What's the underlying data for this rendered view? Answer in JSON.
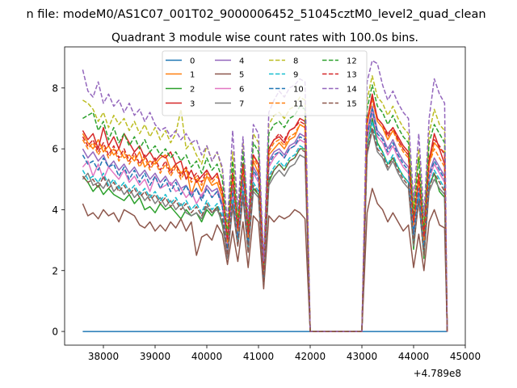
{
  "chart_data": {
    "type": "line",
    "suptitle": "n file: modeM0/AS1C07_001T02_9000006452_51045cztM0_level2_quad_clean",
    "title": "Quadrant 3 module wise count rates with 100.0s bins.",
    "xlabel": "",
    "ylabel": "",
    "x_offset_label": "+4.789e8",
    "xlim": [
      37250,
      45000
    ],
    "ylim": [
      -0.45,
      9.35
    ],
    "x_ticks": [
      38000,
      39000,
      40000,
      41000,
      42000,
      43000,
      44000,
      45000
    ],
    "y_ticks": [
      0,
      2,
      4,
      6,
      8
    ],
    "x_tick_labels": [
      "38000",
      "39000",
      "40000",
      "41000",
      "42000",
      "43000",
      "44000",
      "45000"
    ],
    "y_tick_labels": [
      "0",
      "2",
      "4",
      "6",
      "8"
    ],
    "grid": false,
    "legend_placement": "upper-center",
    "x": [
      37600,
      37700,
      37800,
      37900,
      38000,
      38100,
      38200,
      38300,
      38400,
      38500,
      38600,
      38700,
      38800,
      38900,
      39000,
      39100,
      39200,
      39300,
      39400,
      39500,
      39600,
      39700,
      39800,
      39900,
      40000,
      40100,
      40200,
      40300,
      40400,
      40500,
      40600,
      40700,
      40800,
      40900,
      41000,
      41100,
      41200,
      41300,
      41400,
      41500,
      41600,
      41700,
      41800,
      41900,
      42000,
      42100,
      43000,
      43100,
      43200,
      43300,
      43400,
      43500,
      43600,
      43700,
      43800,
      43900,
      44000,
      44100,
      44200,
      44300,
      44400,
      44500,
      44600,
      44650
    ],
    "series": [
      {
        "name": "0",
        "color": "#1f77b4",
        "style": "solid",
        "values": [
          0,
          0,
          0,
          0,
          0,
          0,
          0,
          0,
          0,
          0,
          0,
          0,
          0,
          0,
          0,
          0,
          0,
          0,
          0,
          0,
          0,
          0,
          0,
          0,
          0,
          0,
          0,
          0,
          0,
          0,
          0,
          0,
          0,
          0,
          0,
          0,
          0,
          0,
          0,
          0,
          0,
          0,
          0,
          0,
          0,
          0,
          0,
          0,
          0,
          0,
          0,
          0,
          0,
          0,
          0,
          0,
          0,
          0,
          0,
          0,
          0,
          0,
          0,
          0
        ]
      },
      {
        "name": "1",
        "color": "#ff7f0e",
        "style": "solid",
        "values": [
          6.5,
          6.2,
          6.0,
          6.3,
          5.9,
          6.1,
          5.8,
          6.0,
          5.7,
          5.8,
          5.6,
          5.9,
          5.4,
          5.6,
          5.5,
          5.7,
          5.8,
          5.3,
          5.5,
          5.2,
          5.4,
          4.5,
          5.0,
          4.6,
          5.1,
          4.8,
          4.9,
          4.4,
          2.8,
          5.0,
          3.2,
          5.3,
          3.0,
          5.6,
          5.2,
          1.9,
          5.8,
          6.0,
          6.2,
          6.0,
          6.3,
          6.4,
          6.8,
          6.7,
          0,
          0,
          0,
          6.8,
          7.7,
          6.9,
          6.7,
          6.3,
          6.6,
          6.3,
          6.0,
          5.8,
          3.5,
          5.0,
          2.9,
          5.5,
          6.2,
          6.0,
          5.9,
          0
        ]
      },
      {
        "name": "2",
        "color": "#2ca02c",
        "style": "solid",
        "values": [
          5.1,
          4.9,
          4.6,
          4.8,
          4.5,
          4.7,
          4.5,
          4.4,
          4.3,
          4.5,
          4.2,
          4.4,
          4.0,
          4.1,
          3.9,
          4.2,
          4.0,
          4.1,
          3.9,
          3.7,
          4.0,
          3.8,
          3.9,
          3.6,
          4.0,
          3.8,
          4.1,
          3.5,
          2.5,
          4.3,
          2.9,
          4.5,
          2.8,
          4.7,
          4.5,
          1.7,
          4.9,
          5.3,
          5.5,
          5.3,
          5.6,
          5.7,
          6.0,
          6.0,
          0,
          0,
          0,
          6.0,
          7.0,
          6.2,
          5.9,
          5.5,
          5.7,
          5.4,
          5.1,
          4.9,
          2.7,
          4.5,
          2.4,
          4.8,
          5.2,
          4.6,
          4.4,
          0
        ]
      },
      {
        "name": "3",
        "color": "#d62728",
        "style": "solid",
        "values": [
          6.6,
          6.3,
          6.5,
          6.0,
          6.7,
          6.1,
          6.4,
          6.0,
          6.5,
          6.2,
          5.9,
          6.1,
          5.7,
          5.9,
          5.6,
          5.8,
          5.7,
          5.9,
          5.5,
          5.6,
          5.0,
          5.3,
          4.9,
          5.1,
          5.3,
          5.0,
          5.2,
          4.6,
          2.9,
          5.2,
          3.3,
          5.5,
          3.1,
          5.8,
          5.5,
          2.0,
          6.0,
          6.3,
          6.4,
          6.2,
          6.6,
          6.7,
          7.0,
          6.9,
          0,
          0,
          0,
          6.9,
          7.8,
          7.0,
          6.8,
          6.5,
          6.7,
          6.4,
          6.1,
          5.9,
          3.6,
          5.1,
          3.0,
          5.6,
          6.5,
          6.0,
          5.5,
          0
        ]
      },
      {
        "name": "4",
        "color": "#9467bd",
        "style": "solid",
        "values": [
          6.0,
          5.7,
          5.9,
          5.6,
          5.8,
          5.4,
          5.6,
          5.3,
          5.5,
          5.2,
          5.4,
          5.1,
          5.3,
          5.0,
          5.2,
          4.9,
          5.1,
          4.8,
          5.0,
          4.7,
          4.8,
          4.5,
          4.7,
          4.4,
          4.8,
          4.6,
          4.7,
          4.2,
          2.7,
          4.8,
          3.1,
          5.1,
          2.9,
          5.4,
          5.1,
          1.8,
          5.6,
          5.9,
          6.0,
          5.8,
          6.1,
          6.2,
          6.5,
          6.4,
          0,
          0,
          0,
          6.5,
          7.4,
          6.6,
          6.4,
          6.0,
          6.3,
          5.9,
          5.6,
          5.4,
          3.3,
          4.7,
          2.8,
          5.2,
          5.7,
          5.4,
          5.1,
          0
        ]
      },
      {
        "name": "5",
        "color": "#8c564b",
        "style": "solid",
        "values": [
          4.2,
          3.8,
          3.9,
          3.7,
          4.0,
          3.8,
          3.9,
          3.6,
          4.0,
          3.9,
          3.8,
          3.5,
          3.4,
          3.6,
          3.3,
          3.5,
          3.3,
          3.6,
          3.4,
          3.7,
          3.3,
          3.6,
          2.5,
          3.1,
          3.2,
          3.0,
          3.5,
          3.2,
          2.2,
          3.3,
          2.3,
          3.6,
          2.1,
          3.8,
          3.6,
          1.4,
          3.8,
          3.6,
          3.8,
          3.7,
          3.8,
          4.0,
          3.9,
          3.7,
          0,
          0,
          0,
          3.9,
          4.7,
          4.2,
          4.0,
          3.6,
          3.9,
          3.6,
          3.3,
          3.5,
          2.1,
          3.2,
          2.0,
          3.6,
          4.0,
          3.5,
          3.4,
          0
        ]
      },
      {
        "name": "6",
        "color": "#e377c2",
        "style": "solid",
        "values": [
          5.4,
          5.6,
          5.1,
          5.5,
          5.0,
          5.4,
          5.2,
          5.0,
          5.3,
          4.9,
          5.1,
          4.8,
          5.0,
          4.6,
          5.1,
          4.7,
          4.8,
          4.9,
          4.6,
          4.7,
          4.4,
          4.6,
          4.2,
          4.5,
          4.7,
          4.4,
          4.6,
          4.1,
          2.6,
          4.6,
          3.0,
          4.9,
          2.8,
          5.2,
          4.9,
          1.8,
          5.4,
          5.7,
          5.9,
          5.7,
          6.0,
          6.1,
          6.3,
          6.2,
          0,
          0,
          0,
          6.3,
          7.2,
          6.4,
          6.2,
          5.8,
          6.1,
          5.7,
          5.4,
          5.2,
          3.1,
          4.6,
          2.7,
          5.0,
          5.5,
          5.2,
          4.9,
          0
        ]
      },
      {
        "name": "7",
        "color": "#7f7f7f",
        "style": "solid",
        "values": [
          5.0,
          5.2,
          4.8,
          4.9,
          4.7,
          5.0,
          4.6,
          4.8,
          4.5,
          4.7,
          4.4,
          4.6,
          4.3,
          4.5,
          4.2,
          4.4,
          4.1,
          4.3,
          4.0,
          4.2,
          3.9,
          3.8,
          3.9,
          3.7,
          4.1,
          3.9,
          4.0,
          3.6,
          2.4,
          4.1,
          2.8,
          4.4,
          2.6,
          4.6,
          4.4,
          1.6,
          4.8,
          5.1,
          5.3,
          5.1,
          5.4,
          5.5,
          5.8,
          5.7,
          0,
          0,
          0,
          5.8,
          6.6,
          5.9,
          5.7,
          5.3,
          5.6,
          5.2,
          4.9,
          4.7,
          2.8,
          4.3,
          2.5,
          4.6,
          5.0,
          4.7,
          4.5,
          0
        ]
      },
      {
        "name": "8",
        "color": "#bcbd22",
        "style": "dashed",
        "values": [
          7.6,
          7.5,
          7.3,
          6.9,
          7.2,
          6.7,
          7.1,
          6.8,
          7.0,
          6.6,
          6.9,
          6.5,
          6.8,
          6.4,
          6.7,
          6.3,
          6.6,
          6.2,
          6.5,
          7.3,
          6.0,
          6.2,
          5.8,
          5.5,
          6.1,
          5.6,
          5.9,
          5.3,
          3.4,
          5.9,
          3.8,
          6.2,
          3.5,
          6.5,
          6.2,
          2.2,
          6.8,
          7.1,
          7.2,
          7.0,
          7.3,
          7.4,
          7.7,
          7.6,
          0,
          0,
          0,
          7.6,
          8.4,
          7.7,
          7.5,
          7.1,
          7.4,
          7.0,
          6.7,
          6.5,
          4.0,
          6.0,
          3.5,
          6.5,
          7.3,
          6.8,
          6.6,
          0
        ]
      },
      {
        "name": "9",
        "color": "#17becf",
        "style": "dashed",
        "values": [
          5.3,
          5.0,
          5.1,
          4.9,
          5.2,
          4.8,
          5.0,
          4.7,
          4.9,
          4.6,
          4.8,
          4.5,
          4.7,
          4.4,
          4.6,
          4.3,
          4.5,
          4.2,
          4.4,
          4.1,
          4.3,
          4.0,
          4.2,
          3.9,
          4.3,
          4.0,
          4.2,
          3.8,
          2.6,
          4.3,
          2.9,
          4.6,
          2.7,
          4.9,
          4.6,
          1.7,
          5.1,
          5.4,
          5.6,
          5.4,
          5.7,
          5.8,
          6.1,
          6.0,
          0,
          0,
          0,
          6.0,
          6.9,
          6.1,
          5.9,
          5.5,
          5.8,
          5.4,
          5.1,
          4.9,
          3.0,
          4.4,
          2.6,
          4.8,
          5.3,
          5.0,
          4.7,
          0
        ]
      },
      {
        "name": "10",
        "color": "#1f77b4",
        "style": "dashed",
        "values": [
          5.8,
          5.5,
          5.6,
          5.3,
          5.7,
          5.4,
          5.5,
          5.1,
          5.4,
          5.0,
          5.3,
          4.9,
          5.2,
          4.8,
          5.1,
          4.7,
          5.0,
          4.6,
          4.9,
          4.5,
          4.8,
          4.4,
          4.7,
          4.3,
          4.7,
          4.4,
          4.6,
          4.1,
          2.7,
          4.7,
          3.1,
          5.0,
          2.9,
          5.3,
          5.0,
          1.8,
          5.5,
          5.8,
          5.9,
          5.7,
          6.0,
          6.1,
          6.4,
          6.3,
          0,
          0,
          0,
          6.4,
          7.3,
          6.5,
          6.3,
          5.9,
          6.2,
          5.8,
          5.5,
          5.3,
          3.2,
          4.7,
          2.8,
          5.1,
          5.6,
          5.3,
          5.0,
          0
        ]
      },
      {
        "name": "11",
        "color": "#ff7f0e",
        "style": "dashed",
        "values": [
          6.3,
          6.0,
          6.2,
          5.8,
          6.1,
          5.7,
          6.0,
          5.6,
          5.9,
          5.5,
          5.8,
          5.4,
          5.7,
          5.3,
          5.6,
          5.2,
          5.5,
          5.1,
          5.4,
          5.0,
          5.3,
          4.9,
          5.1,
          4.8,
          5.2,
          4.9,
          5.1,
          4.5,
          2.9,
          5.1,
          3.3,
          5.4,
          3.1,
          5.7,
          5.4,
          2.0,
          5.9,
          6.2,
          6.3,
          6.1,
          6.4,
          6.5,
          6.8,
          6.7,
          0,
          0,
          0,
          6.8,
          7.6,
          6.9,
          6.7,
          6.3,
          6.6,
          6.2,
          5.9,
          5.7,
          3.5,
          5.1,
          3.0,
          5.5,
          6.0,
          5.7,
          5.4,
          0
        ]
      },
      {
        "name": "12",
        "color": "#2ca02c",
        "style": "dashed",
        "values": [
          7.0,
          7.1,
          7.2,
          6.6,
          6.9,
          6.3,
          6.7,
          6.2,
          6.5,
          6.1,
          6.4,
          6.0,
          6.3,
          5.9,
          6.1,
          5.8,
          6.0,
          5.7,
          5.9,
          5.6,
          5.8,
          5.4,
          5.6,
          5.2,
          5.7,
          5.3,
          5.5,
          5.0,
          3.1,
          5.6,
          3.5,
          5.9,
          3.3,
          6.2,
          5.9,
          2.1,
          6.5,
          6.8,
          6.9,
          6.7,
          7.0,
          7.1,
          7.4,
          7.3,
          0,
          0,
          0,
          7.3,
          8.1,
          7.4,
          7.2,
          6.8,
          7.1,
          6.7,
          6.4,
          6.2,
          3.8,
          5.7,
          3.3,
          6.2,
          6.8,
          6.5,
          6.2,
          0
        ]
      },
      {
        "name": "13",
        "color": "#d62728",
        "style": "dashed",
        "values": [
          6.4,
          6.1,
          6.3,
          5.9,
          6.2,
          5.8,
          6.1,
          5.7,
          6.0,
          5.6,
          5.9,
          5.5,
          5.8,
          5.4,
          5.7,
          5.3,
          5.6,
          5.2,
          5.5,
          5.1,
          5.4,
          5.0,
          5.2,
          4.9,
          5.3,
          5.0,
          5.2,
          4.6,
          3.0,
          5.2,
          3.4,
          5.5,
          3.2,
          5.8,
          5.5,
          2.0,
          6.0,
          6.3,
          6.5,
          6.3,
          6.6,
          6.7,
          6.9,
          6.8,
          0,
          0,
          0,
          6.9,
          7.7,
          7.0,
          6.8,
          6.4,
          6.7,
          6.3,
          6.0,
          5.8,
          3.6,
          5.2,
          3.1,
          5.7,
          6.3,
          6.1,
          5.8,
          0
        ]
      },
      {
        "name": "14",
        "color": "#9467bd",
        "style": "dashed",
        "values": [
          8.6,
          7.9,
          7.7,
          8.2,
          7.5,
          7.8,
          7.4,
          7.6,
          7.2,
          7.5,
          7.1,
          7.3,
          6.9,
          7.2,
          6.8,
          6.6,
          6.7,
          6.4,
          6.6,
          6.3,
          6.5,
          6.2,
          6.3,
          5.8,
          6.1,
          5.6,
          5.9,
          5.4,
          3.6,
          6.6,
          4.0,
          6.4,
          3.7,
          6.8,
          6.5,
          2.3,
          7.2,
          7.6,
          7.9,
          7.7,
          8.0,
          8.1,
          8.3,
          8.2,
          0,
          0,
          0,
          8.2,
          8.9,
          8.8,
          8.1,
          7.6,
          7.9,
          7.5,
          7.2,
          7.0,
          4.3,
          6.5,
          3.8,
          7.0,
          8.3,
          7.8,
          7.5,
          0
        ]
      },
      {
        "name": "15",
        "color": "#8c564b",
        "style": "dashed",
        "values": [
          5.1,
          4.9,
          5.0,
          4.7,
          5.1,
          4.7,
          4.9,
          4.6,
          4.8,
          4.5,
          4.7,
          4.4,
          4.6,
          4.3,
          4.5,
          4.2,
          4.4,
          4.1,
          4.3,
          4.0,
          4.2,
          3.9,
          4.1,
          3.8,
          4.2,
          3.9,
          4.1,
          3.7,
          2.5,
          4.2,
          2.8,
          4.5,
          2.6,
          4.8,
          4.5,
          1.6,
          5.0,
          5.3,
          5.5,
          5.3,
          5.6,
          5.7,
          6.0,
          5.9,
          0,
          0,
          0,
          5.9,
          6.7,
          6.0,
          5.8,
          5.4,
          5.7,
          5.3,
          5.0,
          4.8,
          2.9,
          4.3,
          2.5,
          4.7,
          5.2,
          4.9,
          4.6,
          0
        ]
      }
    ]
  }
}
